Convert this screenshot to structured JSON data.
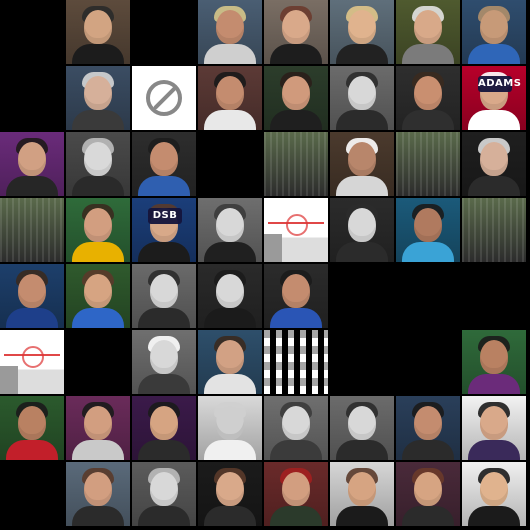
{
  "grid": {
    "rows": 8,
    "cols": 8,
    "background": "#000000",
    "tiles": [
      [
        {
          "kind": "empty"
        },
        {
          "kind": "face",
          "bg": "#5d4b3c",
          "skin": "#d2a482",
          "hair": "#2a2a2a",
          "shirt": "#1c1c1c",
          "gray": false
        },
        {
          "kind": "empty"
        },
        {
          "kind": "face",
          "bg": "#4a5e73",
          "skin": "#c48c6f",
          "hair": "#d6c78a",
          "shirt": "#cfcfcf",
          "gray": false
        },
        {
          "kind": "face",
          "bg": "#7a6e64",
          "skin": "#d9a98a",
          "hair": "#6b3b2d",
          "shirt": "#1d1d1d",
          "gray": false
        },
        {
          "kind": "face",
          "bg": "#5f6f7b",
          "skin": "#e0b38e",
          "hair": "#e0c58a",
          "shirt": "#222222",
          "gray": false
        },
        {
          "kind": "face",
          "bg": "#4f5a2f",
          "skin": "#d8a989",
          "hair": "#e3e3e3",
          "shirt": "#7b7b7b",
          "gray": false
        },
        {
          "kind": "face",
          "bg": "#2f4d6e",
          "skin": "#c79a78",
          "hair": "#b08f6a",
          "shirt": "#2f66b8",
          "gray": false
        }
      ],
      [
        {
          "kind": "empty"
        },
        {
          "kind": "face",
          "bg": "#3b4d63",
          "skin": "#d6b09a",
          "hair": "#d6d6d6",
          "shirt": "#3a3a3a",
          "gray": false
        },
        {
          "kind": "nologo"
        },
        {
          "kind": "face",
          "bg": "#5c3a36",
          "skin": "#c48c6f",
          "hair": "#1a1a1a",
          "shirt": "#e8e8e8",
          "gray": false
        },
        {
          "kind": "face",
          "bg": "#2c3d2b",
          "skin": "#d09a7c",
          "hair": "#2a1f1a",
          "shirt": "#1f1f1f",
          "gray": false
        },
        {
          "kind": "face",
          "bg": "#6b6b6b",
          "skin": "#d8d8d8",
          "hair": "#2b2b2b",
          "shirt": "#2b2b2b",
          "gray": true
        },
        {
          "kind": "face",
          "bg": "#2e2e2e",
          "skin": "#c98f70",
          "hair": "#3a2a1f",
          "shirt": "#2f2f2f",
          "gray": false
        },
        {
          "kind": "cap",
          "bg": "#b7002a",
          "skin": "#d9a98a",
          "hair": "#ffffff",
          "shirt": "#ffffff",
          "gray": false,
          "label": "ADAMS"
        }
      ],
      [
        {
          "kind": "face",
          "bg": "#6a2b7a",
          "skin": "#d1a083",
          "hair": "#1f1a1a",
          "shirt": "#262626",
          "gray": false
        },
        {
          "kind": "face",
          "bg": "#4a4a4a",
          "skin": "#d9d9d9",
          "hair": "#bdbdbd",
          "shirt": "#2a2a2a",
          "gray": true
        },
        {
          "kind": "face",
          "bg": "#2d2d2d",
          "skin": "#c48c6f",
          "hair": "#1d1d1d",
          "shirt": "#2f5fb0",
          "gray": false
        },
        {
          "kind": "empty"
        },
        {
          "kind": "glitch"
        },
        {
          "kind": "face",
          "bg": "#4b3a2d",
          "skin": "#b8866b",
          "hair": "#ffffff",
          "shirt": "#d6d6d6",
          "gray": false
        },
        {
          "kind": "glitch"
        },
        {
          "kind": "face",
          "bg": "#1f1f1f",
          "skin": "#d6b09a",
          "hair": "#dcdcdc",
          "shirt": "#2b2b2b",
          "gray": false
        }
      ],
      [
        {
          "kind": "glitch"
        },
        {
          "kind": "face",
          "bg": "#2f6b3a",
          "skin": "#d29e80",
          "hair": "#3a2a1f",
          "shirt": "#e8b100",
          "gray": false
        },
        {
          "kind": "cap",
          "bg": "#1b3e7a",
          "skin": "#d8a989",
          "hair": "#5a3a2a",
          "shirt": "#1c1c1c",
          "gray": false,
          "label": "DSB"
        },
        {
          "kind": "face",
          "bg": "#6e6e6e",
          "skin": "#d8d8d8",
          "hair": "#3b3b3b",
          "shirt": "#202020",
          "gray": true
        },
        {
          "kind": "rink"
        },
        {
          "kind": "face",
          "bg": "#2b2b2b",
          "skin": "#d8d8d8",
          "hair": "#2b2b2b",
          "shirt": "#2b2b2b",
          "gray": true
        },
        {
          "kind": "face",
          "bg": "#1b5a7a",
          "skin": "#b07a5f",
          "hair": "#1b1b1b",
          "shirt": "#3aa3d6",
          "gray": false
        },
        {
          "kind": "glitch"
        }
      ],
      [
        {
          "kind": "face",
          "bg": "#1d3f6b",
          "skin": "#c48c6f",
          "hair": "#3a2a1f",
          "shirt": "#1e3f8a",
          "gray": false
        },
        {
          "kind": "face",
          "bg": "#2f5a2d",
          "skin": "#d6a482",
          "hair": "#5a3a2a",
          "shirt": "#2e66c7",
          "gray": false
        },
        {
          "kind": "face",
          "bg": "#6a6a6a",
          "skin": "#d8d8d8",
          "hair": "#2b2b2b",
          "shirt": "#2b2b2b",
          "gray": true
        },
        {
          "kind": "face",
          "bg": "#2a2a2a",
          "skin": "#d8d8d8",
          "hair": "#1b1b1b",
          "shirt": "#1b1b1b",
          "gray": true
        },
        {
          "kind": "face",
          "bg": "#2b2b2b",
          "skin": "#c48c6f",
          "hair": "#1b1b1b",
          "shirt": "#2a55b5",
          "gray": false
        },
        {
          "kind": "empty"
        },
        {
          "kind": "empty"
        },
        {
          "kind": "empty"
        }
      ],
      [
        {
          "kind": "rink"
        },
        {
          "kind": "empty"
        },
        {
          "kind": "face",
          "bg": "#6f6f6f",
          "skin": "#d8d8d8",
          "hair": "#ffffff",
          "shirt": "#3a3a3a",
          "gray": true
        },
        {
          "kind": "face",
          "bg": "#2e4f6b",
          "skin": "#d2a184",
          "hair": "#3a2a1f",
          "shirt": "#e3e3e3",
          "gray": false
        },
        {
          "kind": "checker"
        },
        {
          "kind": "empty"
        },
        {
          "kind": "empty"
        },
        {
          "kind": "face",
          "bg": "#2f6a3a",
          "skin": "#b98162",
          "hair": "#1b1b1b",
          "shirt": "#6b2b7a",
          "gray": false
        }
      ],
      [
        {
          "kind": "face",
          "bg": "#2b5a2d",
          "skin": "#b98162",
          "hair": "#1b1b1b",
          "shirt": "#c21f2a",
          "gray": false
        },
        {
          "kind": "face",
          "bg": "#6a2b5a",
          "skin": "#d29e80",
          "hair": "#1b1b1b",
          "shirt": "#c9c9c9",
          "gray": false
        },
        {
          "kind": "face",
          "bg": "#3b1a4a",
          "skin": "#d6a482",
          "hair": "#1b1b1b",
          "shirt": "#2b2b2b",
          "gray": false
        },
        {
          "kind": "face",
          "bg": "#d9d9d9",
          "skin": "#cfcfcf",
          "hair": "#cfcfcf",
          "shirt": "#f0f0f0",
          "gray": false
        },
        {
          "kind": "face",
          "bg": "#6f6f6f",
          "skin": "#d8d8d8",
          "hair": "#3b3b3b",
          "shirt": "#3b3b3b",
          "gray": true
        },
        {
          "kind": "face",
          "bg": "#6b6b6b",
          "skin": "#d8d8d8",
          "hair": "#2b2b2b",
          "shirt": "#2b2b2b",
          "gray": true
        },
        {
          "kind": "face",
          "bg": "#2a3f5a",
          "skin": "#c48c6f",
          "hair": "#1b1b1b",
          "shirt": "#2b2b2b",
          "gray": false
        },
        {
          "kind": "face",
          "bg": "#f2f2f2",
          "skin": "#d9a98a",
          "hair": "#1b1b1b",
          "shirt": "#3a2a5a",
          "gray": false
        }
      ],
      [
        {
          "kind": "empty"
        },
        {
          "kind": "face",
          "bg": "#5a6a7a",
          "skin": "#d29e80",
          "hair": "#5a3a2a",
          "shirt": "#2b2b2b",
          "gray": false
        },
        {
          "kind": "face",
          "bg": "#5b5b5b",
          "skin": "#d8d8d8",
          "hair": "#bdbdbd",
          "shirt": "#2b2b2b",
          "gray": true
        },
        {
          "kind": "face",
          "bg": "#1b1b1b",
          "skin": "#d9a98a",
          "hair": "#5a3a2a",
          "shirt": "#2b2b2b",
          "gray": false
        },
        {
          "kind": "face",
          "bg": "#6a2a2a",
          "skin": "#d29e80",
          "hair": "#a31f1f",
          "shirt": "#2b3a2b",
          "gray": false
        },
        {
          "kind": "face",
          "bg": "#d6d6d6",
          "skin": "#d6a482",
          "hair": "#5a3a2a",
          "shirt": "#1b1b1b",
          "gray": false
        },
        {
          "kind": "face",
          "bg": "#4a2a3a",
          "skin": "#d6a482",
          "hair": "#6a3a2a",
          "shirt": "#2b2b2b",
          "gray": false
        },
        {
          "kind": "face",
          "bg": "#f0f0f0",
          "skin": "#e0b38e",
          "hair": "#1b1b1b",
          "shirt": "#1b1b1b",
          "gray": false
        }
      ]
    ]
  }
}
